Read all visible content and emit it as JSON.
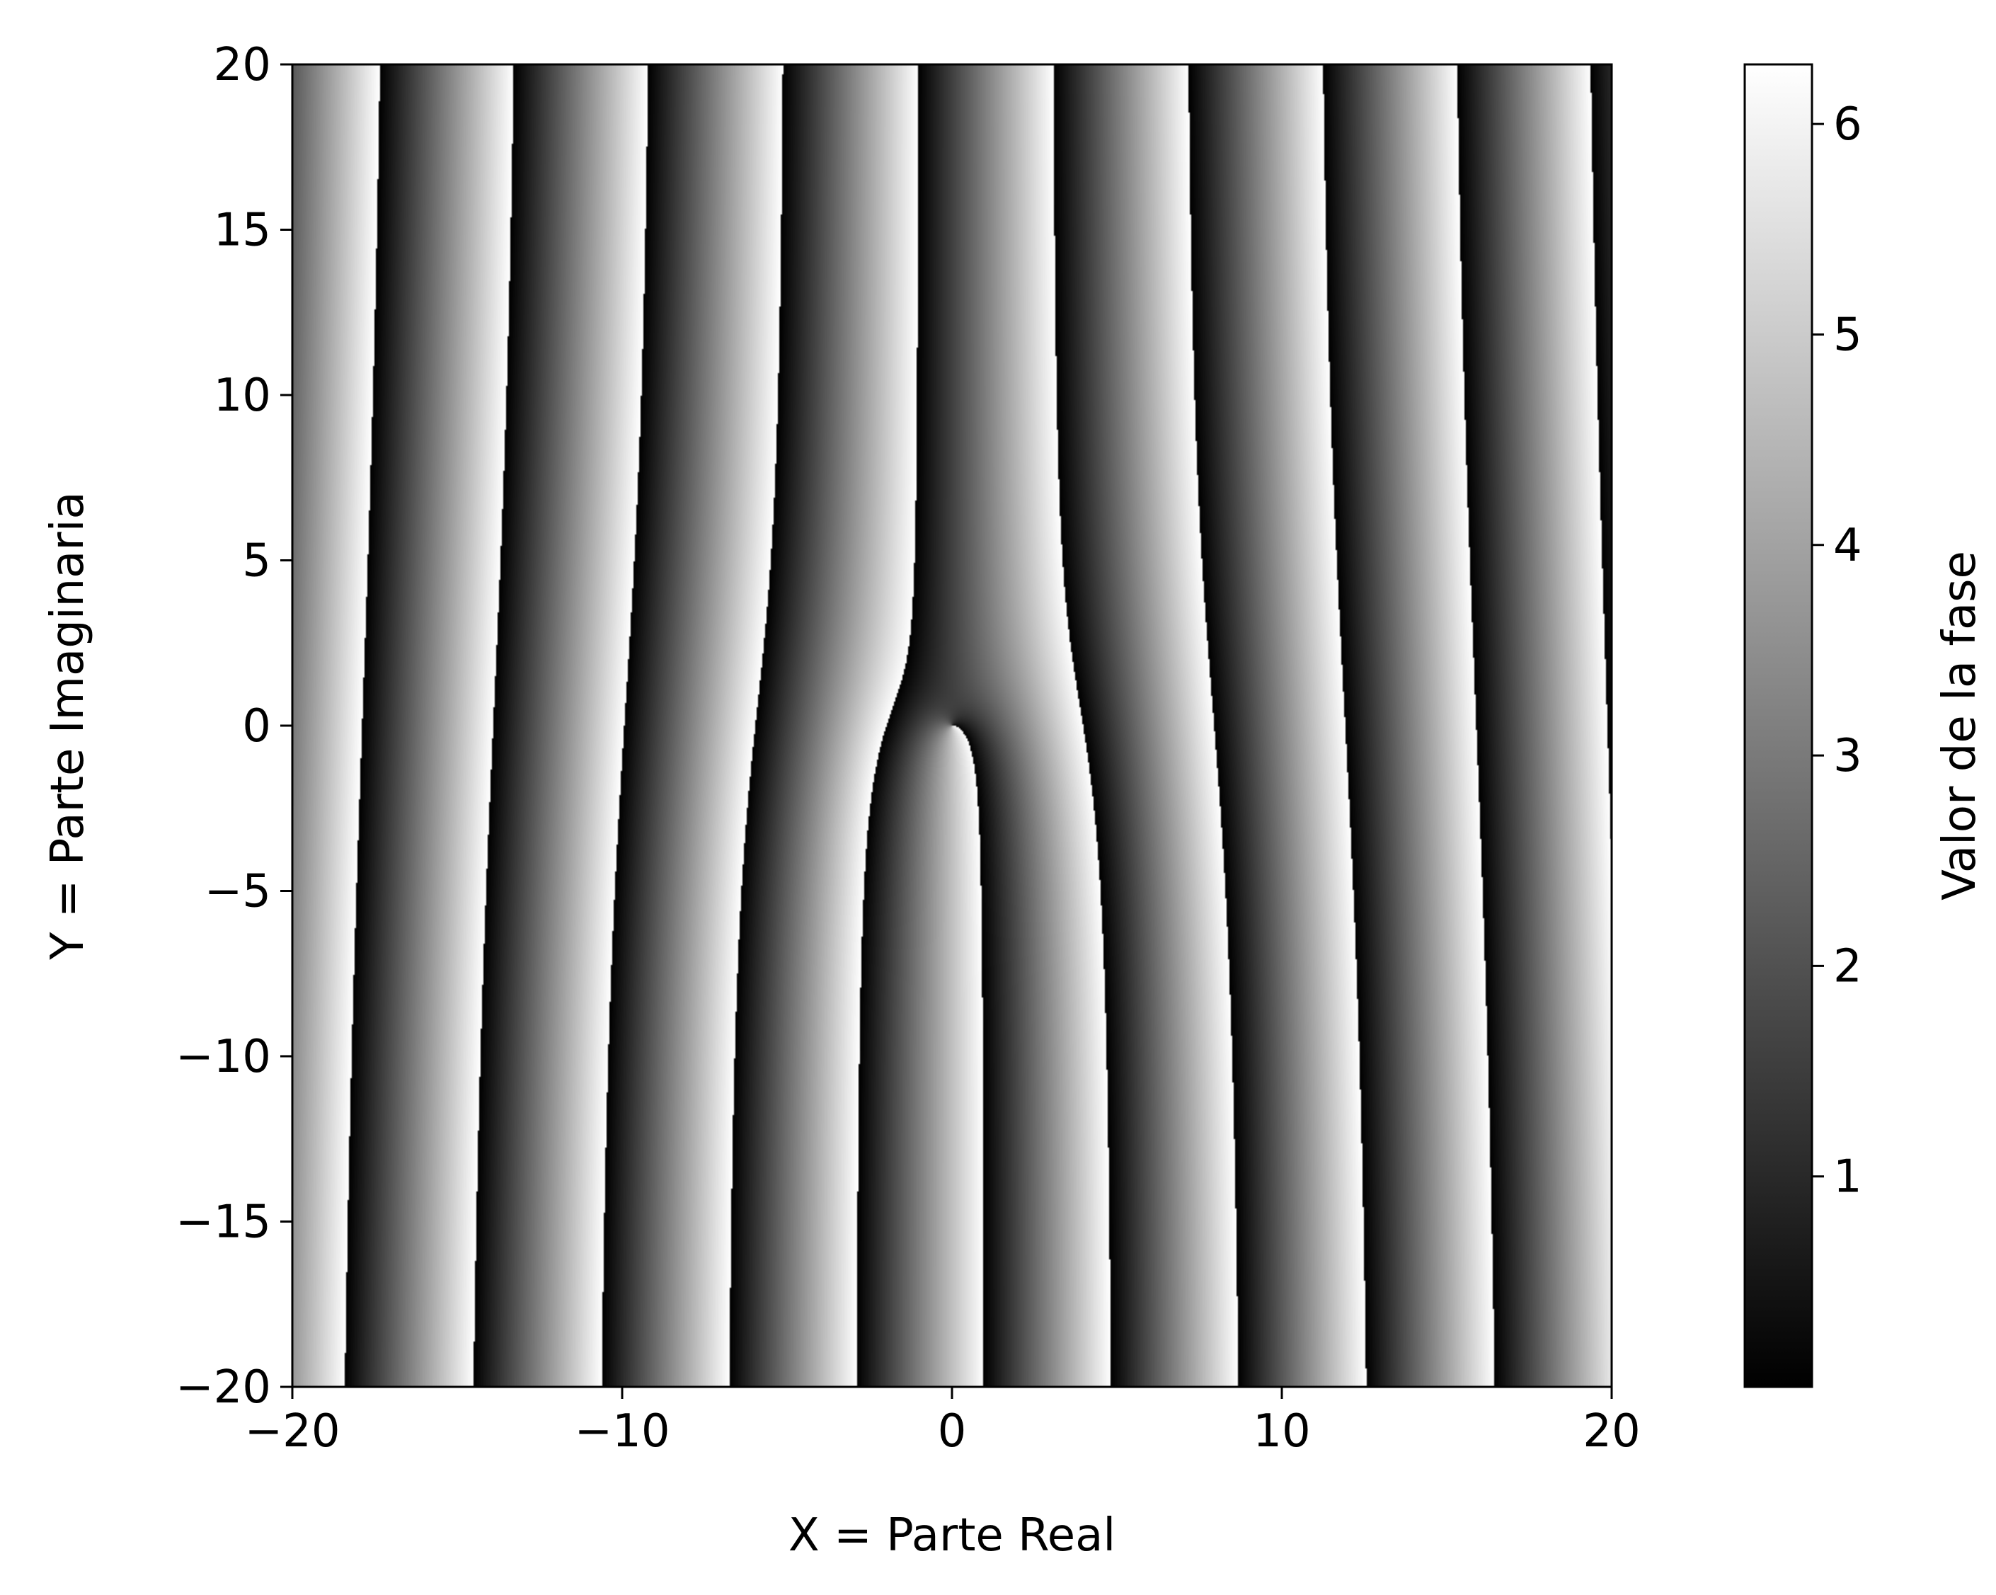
{
  "chart_data": {
    "type": "heatmap",
    "title": "",
    "xlabel": "X = Parte Real",
    "ylabel": "Y = Parte Imaginaria",
    "xlim": [
      -20,
      20
    ],
    "ylim": [
      -20,
      20
    ],
    "xticks": [
      -20,
      -10,
      0,
      10,
      20
    ],
    "xtick_labels": [
      "−20",
      "−10",
      "0",
      "10",
      "20"
    ],
    "yticks": [
      20,
      15,
      10,
      5,
      0,
      -5,
      -10,
      -15,
      -20
    ],
    "ytick_labels": [
      "20",
      "15",
      "10",
      "5",
      "0",
      "−5",
      "−10",
      "−15",
      "−20"
    ],
    "colormap": "gray",
    "value_range": [
      0,
      6.283
    ],
    "phase_function": "arg of the complex plane field, wrapped to [0, 2π)",
    "colorbar": {
      "label": "Valor de la fase",
      "ticks": [
        1,
        2,
        3,
        4,
        5,
        6
      ],
      "tick_labels": [
        "1",
        "2",
        "3",
        "4",
        "5",
        "6"
      ],
      "range": [
        0,
        6.283
      ]
    },
    "grid": false,
    "legend": "none"
  }
}
